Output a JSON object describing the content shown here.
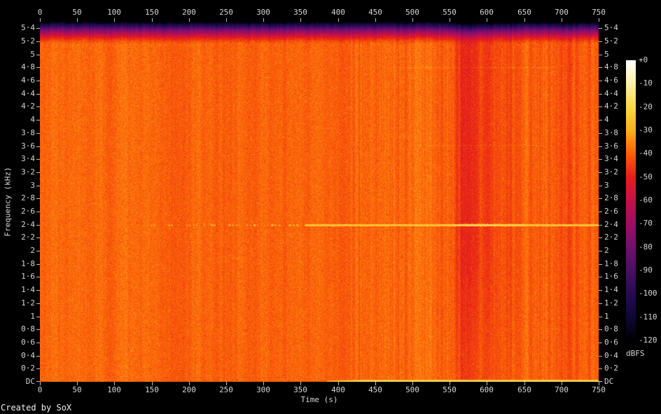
{
  "credit": "Created by SoX",
  "chart_data": {
    "type": "heatmap",
    "subtype": "audio-spectrogram",
    "xlabel": "Time (s)",
    "ylabel": "Frequency (kHz)",
    "x_range_s": [
      0,
      750
    ],
    "x_ticks": [
      0,
      50,
      100,
      150,
      200,
      250,
      300,
      350,
      400,
      450,
      500,
      550,
      600,
      650,
      700,
      750
    ],
    "y_range_khz": [
      0,
      5.5
    ],
    "y_ticks": [
      {
        "khz": 5.4,
        "label": "5·4"
      },
      {
        "khz": 5.2,
        "label": "5·2"
      },
      {
        "khz": 5.0,
        "label": "5"
      },
      {
        "khz": 4.8,
        "label": "4·8"
      },
      {
        "khz": 4.6,
        "label": "4·6"
      },
      {
        "khz": 4.4,
        "label": "4·4"
      },
      {
        "khz": 4.2,
        "label": "4·2"
      },
      {
        "khz": 4.0,
        "label": "4"
      },
      {
        "khz": 3.8,
        "label": "3·8"
      },
      {
        "khz": 3.6,
        "label": "3·6"
      },
      {
        "khz": 3.4,
        "label": "3·4"
      },
      {
        "khz": 3.2,
        "label": "3·2"
      },
      {
        "khz": 3.0,
        "label": "3"
      },
      {
        "khz": 2.8,
        "label": "2·8"
      },
      {
        "khz": 2.6,
        "label": "2·6"
      },
      {
        "khz": 2.4,
        "label": "2·4"
      },
      {
        "khz": 2.2,
        "label": "2·2"
      },
      {
        "khz": 2.0,
        "label": "2"
      },
      {
        "khz": 1.8,
        "label": "1·8"
      },
      {
        "khz": 1.6,
        "label": "1·6"
      },
      {
        "khz": 1.4,
        "label": "1·4"
      },
      {
        "khz": 1.2,
        "label": "1·2"
      },
      {
        "khz": 1.0,
        "label": "1"
      },
      {
        "khz": 0.8,
        "label": "0·8"
      },
      {
        "khz": 0.6,
        "label": "0·6"
      },
      {
        "khz": 0.4,
        "label": "0·4"
      },
      {
        "khz": 0.2,
        "label": "0·2"
      },
      {
        "khz": 0,
        "label": "DC"
      }
    ],
    "colorbar": {
      "label": "dBFS",
      "range_dbfs": [
        0,
        -120
      ],
      "tick_labels": [
        "+0",
        "-10",
        "-20",
        "-30",
        "-40",
        "-50",
        "-60",
        "-70",
        "-80",
        "-90",
        "-100",
        "-110",
        "-120"
      ],
      "palette_stops": [
        {
          "dbfs": 0,
          "color": "#ffffff"
        },
        {
          "dbfs": -10,
          "color": "#fdf0a6"
        },
        {
          "dbfs": -20,
          "color": "#fcd848"
        },
        {
          "dbfs": -30,
          "color": "#fcaf1e"
        },
        {
          "dbfs": -40,
          "color": "#fb5f08"
        },
        {
          "dbfs": -50,
          "color": "#e61e19"
        },
        {
          "dbfs": -60,
          "color": "#c41148"
        },
        {
          "dbfs": -70,
          "color": "#9d0e64"
        },
        {
          "dbfs": -80,
          "color": "#750f6e"
        },
        {
          "dbfs": -90,
          "color": "#4a0e66"
        },
        {
          "dbfs": -100,
          "color": "#260b52"
        },
        {
          "dbfs": -110,
          "color": "#0f0736"
        },
        {
          "dbfs": -120,
          "color": "#000000"
        }
      ]
    },
    "background_level_dbfs": -39.5,
    "noise": {
      "pixel_db": 3.2,
      "speckle_light_prob": 0.025,
      "speckle_dark_prob": 0.02,
      "streak_db": 0.9,
      "right_streak_extra_db": 1.6,
      "right_streak_from_s": 412
    },
    "features": {
      "top_rolloff": {
        "start_khz": 5.16,
        "span_khz": 0.34,
        "depth_db": 80,
        "exponent": 1.6
      },
      "tone": {
        "khz": 2.4,
        "dashed": {
          "t_start": 134,
          "t_end": 356,
          "level_db": -27
        },
        "solid": {
          "t_start": 356,
          "t_end": 750,
          "level_db": -20
        },
        "bright_windows": [
          {
            "t_start": 553,
            "t_end": 650,
            "level_db": -17
          },
          {
            "t_start": 573,
            "t_end": 606,
            "level_db": -15
          }
        ]
      },
      "dc_line": {
        "t_start": 385,
        "t_end": 750,
        "level_db": -15,
        "fade_s": 45
      },
      "faint_lines": [
        {
          "khz": 4.8,
          "t_start": 462,
          "t_end": 700,
          "boost_db": 3.5
        },
        {
          "khz": 3.62,
          "t_start": 495,
          "t_end": 688,
          "boost_db": 3.0
        }
      ],
      "quiet_bands": [
        {
          "t_start": 518,
          "t_end": 540,
          "depth_db": 1.7,
          "edge_s": 6
        },
        {
          "t_start": 545,
          "t_end": 557,
          "depth_db": 1.3,
          "edge_s": 4
        },
        {
          "t_start": 559,
          "t_end": 604,
          "depth_db": 5.5,
          "edge_s": 5
        },
        {
          "t_start": 566,
          "t_end": 588,
          "depth_db": 3.0,
          "edge_s": 3
        },
        {
          "t_start": 605,
          "t_end": 643,
          "depth_db": 2.6,
          "edge_s": 9
        },
        {
          "t_start": 626,
          "t_end": 634,
          "depth_db": 1.8,
          "edge_s": 2
        },
        {
          "t_start": 652,
          "t_end": 674,
          "depth_db": 1.4,
          "edge_s": 6
        },
        {
          "t_start": 690,
          "t_end": 710,
          "depth_db": 2.3,
          "edge_s": 7
        },
        {
          "t_start": 716,
          "t_end": 750,
          "depth_db": 1.1,
          "edge_s": 12
        }
      ]
    }
  }
}
